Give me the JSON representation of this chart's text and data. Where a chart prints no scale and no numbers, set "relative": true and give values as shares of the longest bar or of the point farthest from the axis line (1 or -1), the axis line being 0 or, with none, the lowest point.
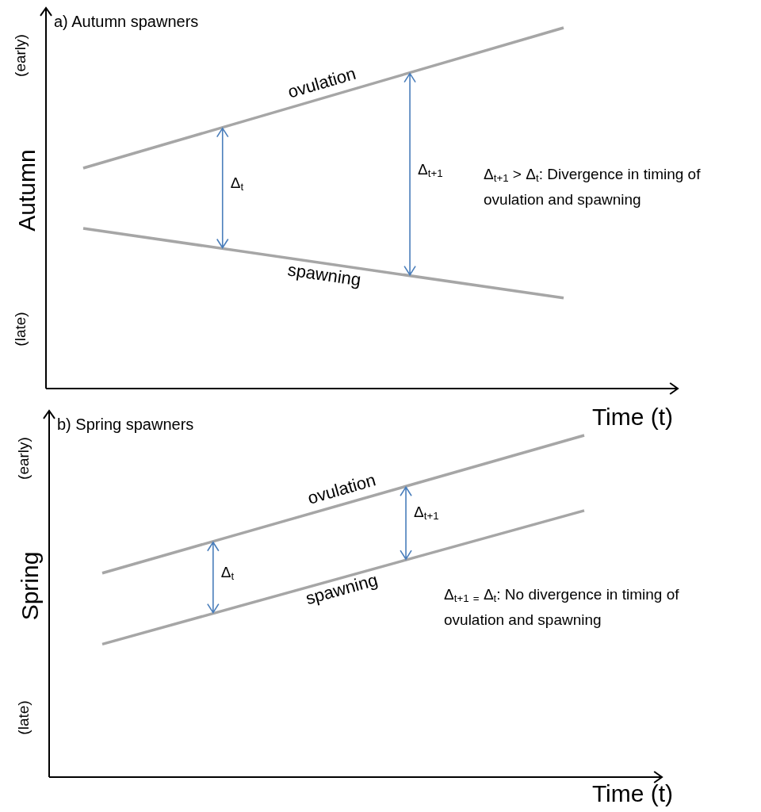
{
  "chart_data": [
    {
      "type": "line",
      "title": "a) Autumn spawners",
      "xlabel": "Time (t)",
      "ylabel": "Autumn",
      "relative": true,
      "categories": [
        null,
        null
      ],
      "marker": "none",
      "line_style": "solid",
      "series": [
        {
          "name": "ovulation",
          "color": "#a6a6a6",
          "values": [
            0.611,
            1.0
          ]
        },
        {
          "name": "spawning",
          "color": "#a6a6a6",
          "values": [
            0.444,
            0.251
          ]
        }
      ],
      "annotations": [
        "(early)",
        "(late)",
        "Δ$_{t}$",
        "Δ$_{t+1}$",
        "Δ$_{t+1}$ > Δ$_{t}$: Divergence in timing of ovulation and spawning"
      ]
    },
    {
      "type": "line",
      "title": "b) Spring spawners",
      "xlabel": "Time (t)",
      "ylabel": "Spring",
      "relative": true,
      "categories": [
        null,
        null
      ],
      "marker": "none",
      "line_style": "solid",
      "series": [
        {
          "name": "ovulation",
          "color": "#a6a6a6",
          "values": [
            0.597,
            1.0
          ]
        },
        {
          "name": "spawning",
          "color": "#a6a6a6",
          "values": [
            0.389,
            0.78
          ]
        }
      ],
      "annotations": [
        "(early)",
        "(late)",
        "Δ$_{t}$",
        "Δ$_{t+1}$",
        "Δ$_{t+1}$ $_{=}$ Δ$_{t}$: No divergence in timing of ovulation and spawning"
      ]
    }
  ]
}
